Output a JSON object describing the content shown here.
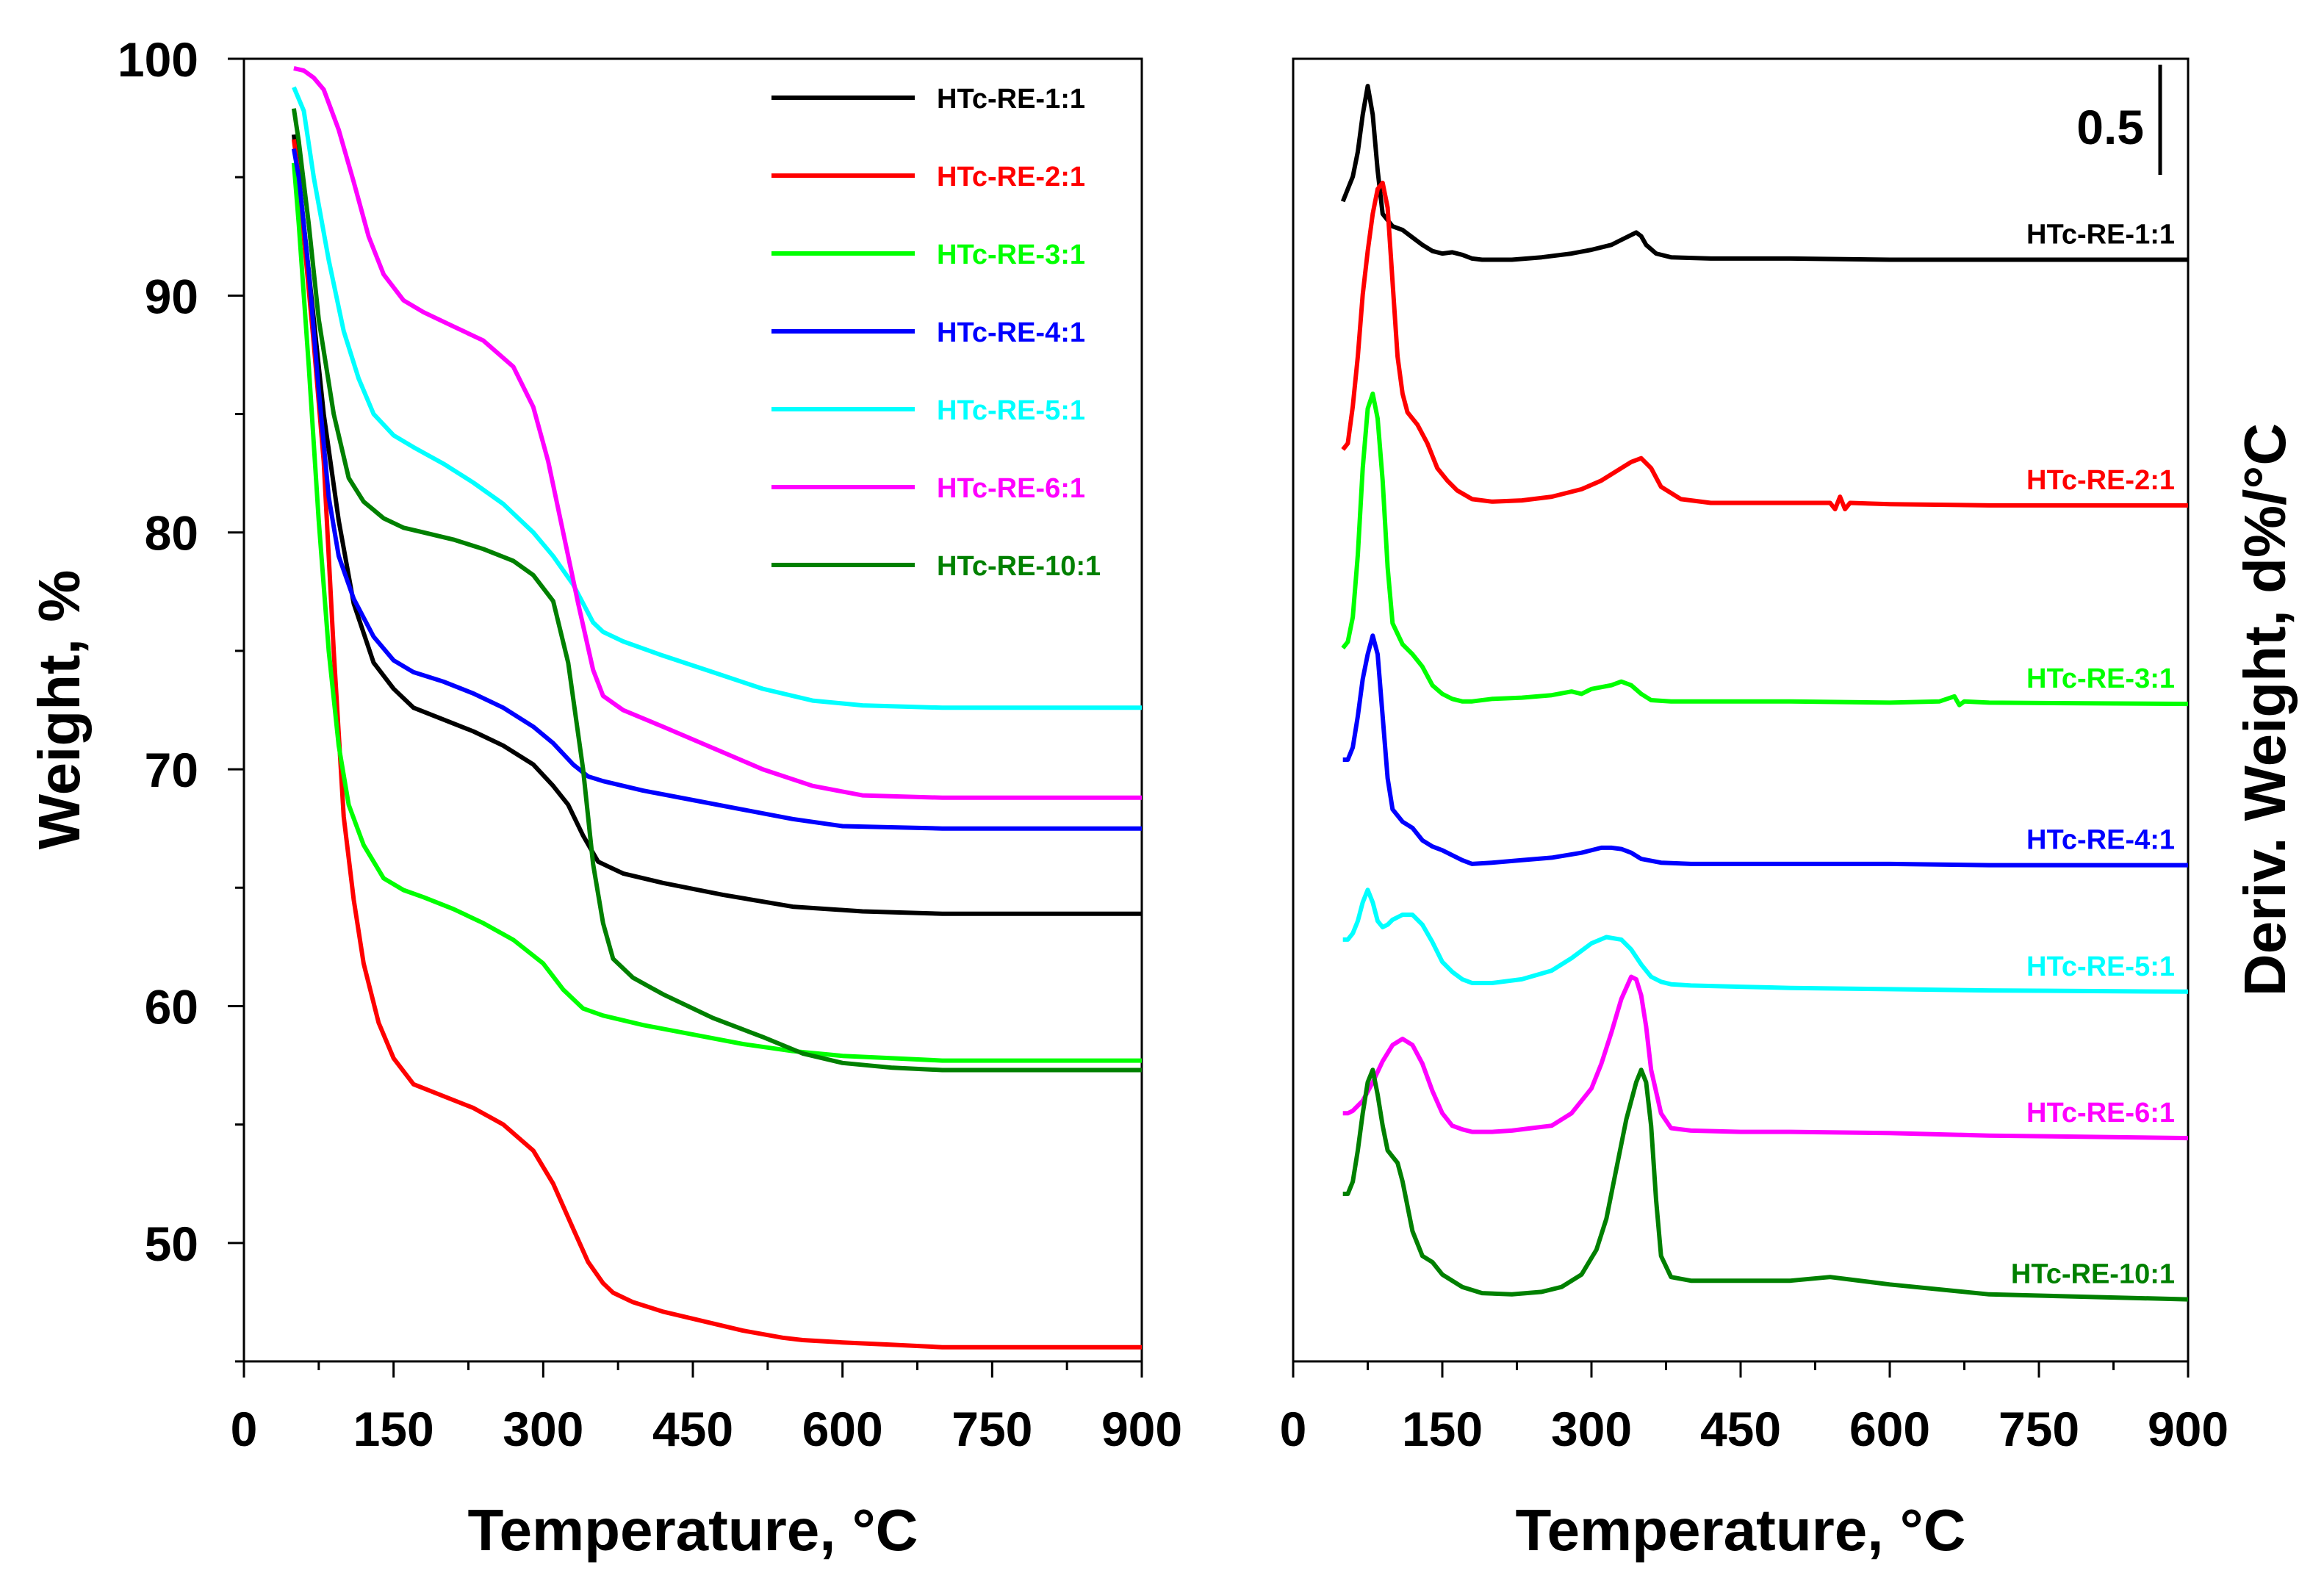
{
  "chart_data": [
    {
      "type": "line",
      "panel": "TGA",
      "xlabel": "Temperature, °C",
      "ylabel": "Weight, %",
      "xlim": [
        0,
        900
      ],
      "ylim": [
        45,
        100
      ],
      "xticks": [
        0,
        150,
        300,
        450,
        600,
        750,
        900
      ],
      "yticks": [
        50,
        60,
        70,
        80,
        90,
        100
      ],
      "legend_position": "top-right",
      "series": [
        {
          "name": "HTc-RE-1:1",
          "color": "#000000",
          "x": [
            50,
            55,
            65,
            80,
            95,
            110,
            130,
            150,
            170,
            200,
            230,
            260,
            290,
            310,
            325,
            340,
            355,
            365,
            380,
            420,
            480,
            550,
            620,
            700,
            800,
            900
          ],
          "y": [
            96.8,
            95,
            91,
            85,
            80.5,
            77,
            74.5,
            73.4,
            72.6,
            72.1,
            71.6,
            71,
            70.2,
            69.3,
            68.5,
            67.2,
            66.1,
            65.9,
            65.6,
            65.2,
            64.7,
            64.2,
            64.0,
            63.9,
            63.9,
            63.9
          ]
        },
        {
          "name": "HTc-RE-2:1",
          "color": "#ff0000",
          "x": [
            50,
            55,
            60,
            70,
            80,
            90,
            100,
            110,
            120,
            135,
            150,
            170,
            200,
            230,
            260,
            290,
            310,
            330,
            345,
            360,
            370,
            390,
            420,
            460,
            500,
            540,
            560,
            600,
            650,
            700,
            800,
            900
          ],
          "y": [
            96.6,
            95,
            92.5,
            88,
            83,
            75,
            68,
            64.5,
            61.8,
            59.3,
            57.8,
            56.7,
            56.2,
            55.7,
            55.0,
            53.9,
            52.5,
            50.6,
            49.2,
            48.3,
            47.9,
            47.5,
            47.1,
            46.7,
            46.3,
            46.0,
            45.9,
            45.8,
            45.7,
            45.6,
            45.6,
            45.6
          ]
        },
        {
          "name": "HTc-RE-3:1",
          "color": "#00ff00",
          "x": [
            50,
            55,
            65,
            75,
            85,
            95,
            105,
            120,
            140,
            160,
            180,
            210,
            240,
            270,
            300,
            320,
            340,
            360,
            400,
            450,
            500,
            550,
            600,
            650,
            700,
            800,
            900
          ],
          "y": [
            95.6,
            93,
            87,
            80.5,
            75,
            71,
            68.5,
            66.8,
            65.4,
            64.9,
            64.6,
            64.1,
            63.5,
            62.8,
            61.8,
            60.7,
            59.9,
            59.6,
            59.2,
            58.8,
            58.4,
            58.1,
            57.9,
            57.8,
            57.7,
            57.7,
            57.7
          ]
        },
        {
          "name": "HTc-RE-4:1",
          "color": "#0000ff",
          "x": [
            50,
            55,
            65,
            75,
            85,
            95,
            110,
            130,
            150,
            170,
            200,
            230,
            260,
            290,
            310,
            330,
            345,
            360,
            400,
            450,
            500,
            550,
            600,
            700,
            800,
            900
          ],
          "y": [
            96.2,
            95,
            91,
            86,
            81.5,
            79,
            77.2,
            75.6,
            74.6,
            74.1,
            73.7,
            73.2,
            72.6,
            71.8,
            71.1,
            70.2,
            69.7,
            69.5,
            69.1,
            68.7,
            68.3,
            67.9,
            67.6,
            67.5,
            67.5,
            67.5
          ]
        },
        {
          "name": "HTc-RE-5:1",
          "color": "#00ffff",
          "x": [
            50,
            60,
            70,
            85,
            100,
            115,
            130,
            150,
            170,
            200,
            230,
            260,
            290,
            310,
            330,
            350,
            360,
            380,
            420,
            470,
            520,
            570,
            620,
            700,
            800,
            900
          ],
          "y": [
            98.8,
            97.8,
            95,
            91.5,
            88.5,
            86.5,
            85,
            84.1,
            83.6,
            82.9,
            82.1,
            81.2,
            80,
            79,
            77.8,
            76.2,
            75.8,
            75.4,
            74.8,
            74.1,
            73.4,
            72.9,
            72.7,
            72.6,
            72.6,
            72.6
          ]
        },
        {
          "name": "HTc-RE-6:1",
          "color": "#ff00ff",
          "x": [
            50,
            60,
            70,
            80,
            95,
            110,
            125,
            140,
            160,
            180,
            210,
            240,
            270,
            290,
            305,
            320,
            335,
            350,
            360,
            380,
            420,
            470,
            520,
            570,
            620,
            700,
            800,
            900
          ],
          "y": [
            99.6,
            99.5,
            99.2,
            98.7,
            97,
            94.8,
            92.5,
            90.9,
            89.8,
            89.3,
            88.7,
            88.1,
            87,
            85.3,
            83,
            80,
            77,
            74.2,
            73.1,
            72.5,
            71.8,
            70.9,
            70.0,
            69.3,
            68.9,
            68.8,
            68.8,
            68.8
          ]
        },
        {
          "name": "HTc-RE-10:1",
          "color": "#008000",
          "x": [
            50,
            55,
            65,
            75,
            90,
            105,
            120,
            140,
            160,
            180,
            210,
            240,
            270,
            290,
            310,
            325,
            340,
            350,
            360,
            370,
            390,
            420,
            470,
            520,
            560,
            600,
            650,
            700,
            800,
            900
          ],
          "y": [
            97.9,
            96.5,
            93,
            89,
            85,
            82.3,
            81.3,
            80.6,
            80.2,
            80.0,
            79.7,
            79.3,
            78.8,
            78.2,
            77.1,
            74.5,
            70,
            66,
            63.5,
            62,
            61.2,
            60.5,
            59.5,
            58.7,
            58.0,
            57.6,
            57.4,
            57.3,
            57.3,
            57.3
          ]
        }
      ]
    },
    {
      "type": "line",
      "panel": "DTG",
      "xlabel": "Temperature, °C",
      "ylabel": "Deriv. Weight, d%/°C",
      "xlim": [
        0,
        900
      ],
      "xticks": [
        0,
        150,
        300,
        450,
        600,
        750,
        900
      ],
      "scale_bar_label": "0.5",
      "series": [
        {
          "name": "HTc-RE-1:1",
          "color": "#000000",
          "label_x": 770,
          "baseline": 1.98,
          "x": [
            50,
            55,
            60,
            65,
            70,
            75,
            80,
            85,
            90,
            100,
            110,
            120,
            130,
            140,
            150,
            160,
            170,
            180,
            190,
            220,
            250,
            280,
            300,
            320,
            330,
            340,
            345,
            350,
            355,
            365,
            380,
            420,
            500,
            600,
            700,
            900
          ],
          "y": [
            2.45,
            2.55,
            2.65,
            2.85,
            3.15,
            3.38,
            3.15,
            2.7,
            2.35,
            2.25,
            2.22,
            2.16,
            2.1,
            2.05,
            2.03,
            2.04,
            2.02,
            1.99,
            1.98,
            1.98,
            2.0,
            2.03,
            2.06,
            2.1,
            2.14,
            2.18,
            2.2,
            2.17,
            2.1,
            2.03,
            2.0,
            1.99,
            1.99,
            1.98,
            1.98,
            1.98
          ]
        },
        {
          "name": "HTc-RE-2:1",
          "color": "#ff0000",
          "label_x": 770,
          "baseline": 0.0,
          "x": [
            50,
            55,
            60,
            65,
            70,
            75,
            80,
            85,
            90,
            95,
            100,
            105,
            110,
            115,
            125,
            135,
            145,
            155,
            165,
            180,
            200,
            230,
            260,
            290,
            310,
            330,
            340,
            350,
            360,
            370,
            390,
            420,
            500,
            540,
            545,
            550,
            555,
            560,
            600,
            700,
            900
          ],
          "y": [
            0.45,
            0.5,
            0.8,
            1.2,
            1.7,
            2.05,
            2.35,
            2.55,
            2.6,
            2.4,
            1.8,
            1.2,
            0.9,
            0.75,
            0.65,
            0.5,
            0.3,
            0.2,
            0.12,
            0.05,
            0.03,
            0.04,
            0.07,
            0.13,
            0.2,
            0.3,
            0.35,
            0.38,
            0.3,
            0.15,
            0.05,
            0.02,
            0.02,
            0.02,
            -0.03,
            0.07,
            -0.03,
            0.02,
            0.01,
            0.0,
            0.0
          ]
        },
        {
          "name": "HTc-RE-3:1",
          "color": "#00ff00",
          "label_x": 770,
          "baseline": -1.6,
          "x": [
            50,
            55,
            60,
            65,
            70,
            75,
            80,
            85,
            90,
            95,
            100,
            110,
            120,
            130,
            140,
            150,
            160,
            170,
            180,
            200,
            230,
            260,
            280,
            290,
            300,
            320,
            330,
            340,
            350,
            360,
            380,
            420,
            500,
            600,
            650,
            665,
            670,
            675,
            700,
            900
          ],
          "y": [
            -1.15,
            -1.1,
            -0.9,
            -0.4,
            0.3,
            0.78,
            0.9,
            0.7,
            0.2,
            -0.5,
            -0.95,
            -1.12,
            -1.2,
            -1.3,
            -1.45,
            -1.52,
            -1.56,
            -1.58,
            -1.58,
            -1.56,
            -1.55,
            -1.53,
            -1.5,
            -1.52,
            -1.48,
            -1.45,
            -1.42,
            -1.45,
            -1.52,
            -1.57,
            -1.58,
            -1.58,
            -1.58,
            -1.59,
            -1.58,
            -1.54,
            -1.61,
            -1.58,
            -1.59,
            -1.6
          ]
        },
        {
          "name": "HTc-RE-4:1",
          "color": "#0000ff",
          "label_x": 770,
          "baseline": -2.9,
          "x": [
            50,
            55,
            60,
            65,
            70,
            75,
            80,
            85,
            90,
            95,
            100,
            110,
            120,
            130,
            140,
            150,
            160,
            170,
            180,
            200,
            230,
            260,
            290,
            310,
            320,
            330,
            340,
            350,
            370,
            400,
            500,
            600,
            700,
            900
          ],
          "y": [
            -2.05,
            -2.05,
            -1.95,
            -1.7,
            -1.4,
            -1.2,
            -1.05,
            -1.2,
            -1.7,
            -2.2,
            -2.45,
            -2.55,
            -2.6,
            -2.7,
            -2.75,
            -2.78,
            -2.82,
            -2.86,
            -2.89,
            -2.88,
            -2.86,
            -2.84,
            -2.8,
            -2.76,
            -2.76,
            -2.77,
            -2.8,
            -2.85,
            -2.88,
            -2.89,
            -2.89,
            -2.89,
            -2.9,
            -2.9
          ]
        },
        {
          "name": "HTc-RE-5:1",
          "color": "#00ffff",
          "label_x": 770,
          "baseline": -3.92,
          "x": [
            50,
            55,
            60,
            65,
            70,
            75,
            80,
            85,
            90,
            95,
            100,
            110,
            120,
            130,
            140,
            150,
            160,
            170,
            180,
            200,
            230,
            260,
            280,
            300,
            315,
            330,
            340,
            350,
            360,
            370,
            380,
            400,
            450,
            500,
            600,
            700,
            900
          ],
          "y": [
            -3.5,
            -3.5,
            -3.45,
            -3.35,
            -3.2,
            -3.1,
            -3.2,
            -3.35,
            -3.4,
            -3.38,
            -3.34,
            -3.3,
            -3.3,
            -3.38,
            -3.52,
            -3.68,
            -3.76,
            -3.82,
            -3.85,
            -3.85,
            -3.82,
            -3.75,
            -3.65,
            -3.53,
            -3.48,
            -3.5,
            -3.58,
            -3.7,
            -3.8,
            -3.84,
            -3.86,
            -3.87,
            -3.88,
            -3.89,
            -3.9,
            -3.91,
            -3.92
          ]
        },
        {
          "name": "HTc-RE-6:1",
          "color": "#ff00ff",
          "label_x": 770,
          "baseline": -5.1,
          "x": [
            50,
            55,
            60,
            70,
            80,
            90,
            100,
            110,
            120,
            130,
            140,
            150,
            160,
            170,
            180,
            200,
            220,
            240,
            260,
            280,
            300,
            310,
            320,
            330,
            340,
            345,
            350,
            355,
            360,
            370,
            380,
            400,
            450,
            500,
            600,
            700,
            900
          ],
          "y": [
            -4.9,
            -4.9,
            -4.88,
            -4.8,
            -4.65,
            -4.48,
            -4.35,
            -4.3,
            -4.35,
            -4.5,
            -4.72,
            -4.9,
            -5.0,
            -5.03,
            -5.05,
            -5.05,
            -5.04,
            -5.02,
            -5.0,
            -4.9,
            -4.7,
            -4.5,
            -4.25,
            -3.98,
            -3.8,
            -3.82,
            -3.95,
            -4.2,
            -4.55,
            -4.9,
            -5.02,
            -5.04,
            -5.05,
            -5.05,
            -5.06,
            -5.08,
            -5.1
          ]
        },
        {
          "name": "HTc-RE-10:1",
          "color": "#008000",
          "label_x": 770,
          "baseline": -6.4,
          "x": [
            50,
            55,
            60,
            65,
            70,
            75,
            80,
            85,
            90,
            95,
            100,
            105,
            110,
            120,
            130,
            140,
            150,
            170,
            190,
            220,
            250,
            270,
            290,
            305,
            315,
            325,
            335,
            345,
            350,
            355,
            360,
            365,
            370,
            380,
            400,
            450,
            500,
            540,
            600,
            700,
            900
          ],
          "y": [
            -5.55,
            -5.55,
            -5.45,
            -5.2,
            -4.9,
            -4.65,
            -4.55,
            -4.75,
            -5.0,
            -5.2,
            -5.25,
            -5.3,
            -5.45,
            -5.85,
            -6.05,
            -6.1,
            -6.2,
            -6.3,
            -6.35,
            -6.36,
            -6.34,
            -6.3,
            -6.2,
            -6.0,
            -5.75,
            -5.35,
            -4.95,
            -4.65,
            -4.55,
            -4.65,
            -5.0,
            -5.6,
            -6.05,
            -6.22,
            -6.25,
            -6.25,
            -6.25,
            -6.22,
            -6.28,
            -6.36,
            -6.4
          ]
        }
      ]
    }
  ]
}
